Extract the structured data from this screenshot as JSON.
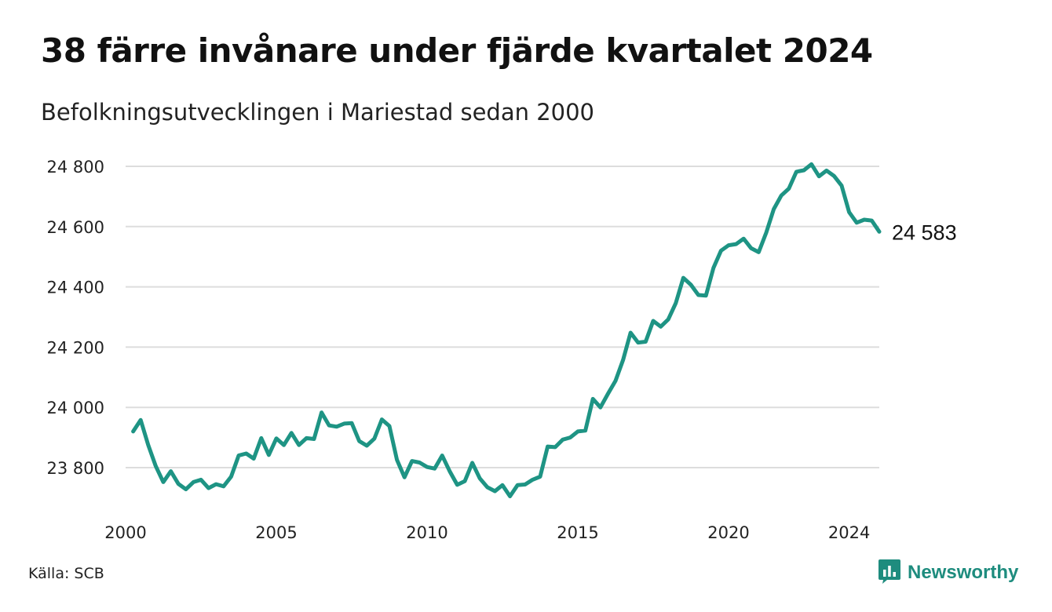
{
  "header": {
    "title": "38 färre invånare under fjärde kvartalet 2024",
    "subtitle": "Befolkningsutvecklingen i Mariestad sedan 2000"
  },
  "footer": {
    "source": "Källa: SCB",
    "brand": "Newsworthy",
    "brand_icon": "bar-chart-icon"
  },
  "colors": {
    "line": "#1e9484",
    "grid": "#dddddd",
    "brand": "#1e8c7e"
  },
  "chart_data": {
    "type": "line",
    "title": "38 färre invånare under fjärde kvartalet 2024",
    "subtitle": "Befolkningsutvecklingen i Mariestad sedan 2000",
    "xlabel": "",
    "ylabel": "",
    "x_ticks": [
      "2000",
      "2005",
      "2010",
      "2015",
      "2020",
      "2024"
    ],
    "x_tick_values": [
      2000,
      2005,
      2010,
      2015,
      2020,
      2024
    ],
    "y_ticks": [
      "23 800",
      "24 000",
      "24 200",
      "24 400",
      "24 600",
      "24 800"
    ],
    "y_tick_values": [
      23800,
      24000,
      24200,
      24400,
      24600,
      24800
    ],
    "xlim": [
      2000,
      2025
    ],
    "ylim": [
      23690,
      24820
    ],
    "grid": true,
    "end_label": "24 583",
    "series": [
      {
        "x": [
          2000.25,
          2000.5,
          2000.75,
          2001.0,
          2001.25,
          2001.5,
          2001.75,
          2002.0,
          2002.25,
          2002.5,
          2002.75,
          2003.0,
          2003.25,
          2003.5,
          2003.75,
          2004.0,
          2004.25,
          2004.5,
          2004.75,
          2005.0,
          2005.25,
          2005.5,
          2005.75,
          2006.0,
          2006.25,
          2006.5,
          2006.75,
          2007.0,
          2007.25,
          2007.5,
          2007.75,
          2008.0,
          2008.25,
          2008.5,
          2008.75,
          2009.0,
          2009.25,
          2009.5,
          2009.75,
          2010.0,
          2010.25,
          2010.5,
          2010.75,
          2011.0,
          2011.25,
          2011.5,
          2011.75,
          2012.0,
          2012.25,
          2012.5,
          2012.75,
          2013.0,
          2013.25,
          2013.5,
          2013.75,
          2014.0,
          2014.25,
          2014.5,
          2014.75,
          2015.0,
          2015.25,
          2015.5,
          2015.75,
          2016.0,
          2016.25,
          2016.5,
          2016.75,
          2017.0,
          2017.25,
          2017.5,
          2017.75,
          2018.0,
          2018.25,
          2018.5,
          2018.75,
          2019.0,
          2019.25,
          2019.5,
          2019.75,
          2020.0,
          2020.25,
          2020.5,
          2020.75,
          2021.0,
          2021.25,
          2021.5,
          2021.75,
          2022.0,
          2022.25,
          2022.5,
          2022.75,
          2023.0,
          2023.25,
          2023.5,
          2023.75,
          2024.0,
          2024.25,
          2024.5,
          2024.75,
          2025.0
        ],
        "values": [
          23920,
          23958,
          23875,
          23805,
          23752,
          23788,
          23746,
          23728,
          23752,
          23760,
          23732,
          23745,
          23738,
          23770,
          23840,
          23847,
          23830,
          23898,
          23842,
          23897,
          23875,
          23915,
          23875,
          23898,
          23895,
          23983,
          23940,
          23936,
          23946,
          23948,
          23888,
          23873,
          23896,
          23960,
          23938,
          23826,
          23768,
          23822,
          23817,
          23802,
          23797,
          23840,
          23788,
          23743,
          23755,
          23816,
          23764,
          23735,
          23722,
          23742,
          23705,
          23742,
          23744,
          23760,
          23770,
          23870,
          23868,
          23893,
          23900,
          23920,
          23923,
          24028,
          24000,
          24045,
          24088,
          24157,
          24248,
          24215,
          24218,
          24287,
          24268,
          24292,
          24346,
          24430,
          24407,
          24373,
          24371,
          24463,
          24520,
          24538,
          24542,
          24560,
          24528,
          24515,
          24580,
          24658,
          24703,
          24726,
          24782,
          24787,
          24807,
          24767,
          24786,
          24768,
          24736,
          24648,
          24613,
          24623,
          24620,
          24583
        ]
      }
    ]
  }
}
